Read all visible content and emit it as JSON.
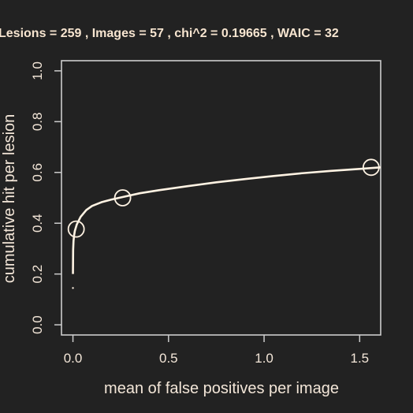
{
  "chart_data": {
    "type": "line",
    "title": "Lesions =  259 ,  Images =  57 , chi^2 = 0.19665 , WAIC = 32",
    "xlabel": "mean of false positives per image",
    "ylabel": "cumulative hit per lesion",
    "xlim": [
      -0.06,
      1.61
    ],
    "ylim": [
      -0.04,
      1.04
    ],
    "x_ticks": [
      0.0,
      0.5,
      1.0,
      1.5
    ],
    "x_tick_labels": [
      "0.0",
      "0.5",
      "1.0",
      "1.5"
    ],
    "y_ticks": [
      0.0,
      0.2,
      0.4,
      0.6,
      0.8,
      1.0
    ],
    "y_tick_labels": [
      "0.0",
      "0.2",
      "0.4",
      "0.6",
      "0.8",
      "1.0"
    ],
    "grid": false,
    "series": [
      {
        "type": "line",
        "x": [
          0.0,
          0.001,
          0.003,
          0.006,
          0.01,
          0.02,
          0.04,
          0.07,
          0.1,
          0.15,
          0.2,
          0.26,
          0.35,
          0.45,
          0.6,
          0.75,
          0.9,
          1.05,
          1.2,
          1.35,
          1.5,
          1.61
        ],
        "y": [
          0.2,
          0.295,
          0.33,
          0.352,
          0.37,
          0.395,
          0.425,
          0.452,
          0.468,
          0.483,
          0.493,
          0.503,
          0.518,
          0.53,
          0.546,
          0.561,
          0.574,
          0.586,
          0.597,
          0.606,
          0.614,
          0.62
        ]
      },
      {
        "type": "scatter",
        "marker": "open-circle",
        "x": [
          0.017,
          0.26,
          1.56
        ],
        "y": [
          0.377,
          0.5,
          0.62
        ]
      },
      {
        "type": "point",
        "x": [
          0.0
        ],
        "y": [
          0.145
        ]
      }
    ],
    "colors": {
      "background": "#222222",
      "foreground": "#f3e6d8",
      "curve": "#fff3e3",
      "axis_box": "#cccccc",
      "title": "#f7e5d0"
    }
  }
}
